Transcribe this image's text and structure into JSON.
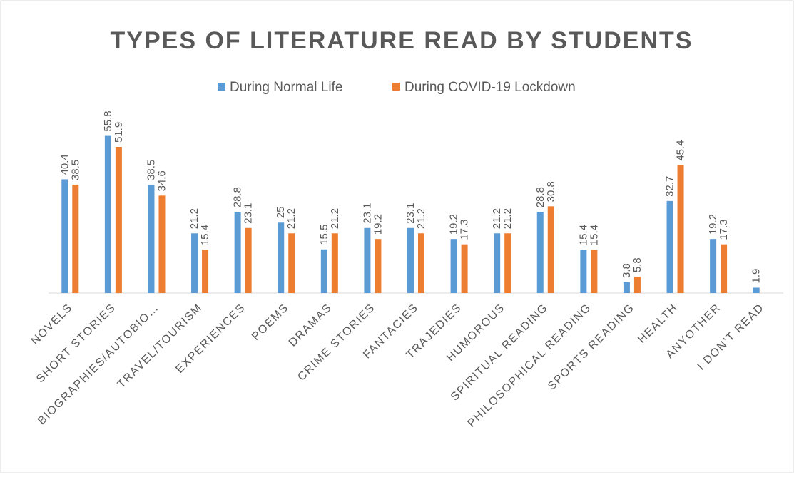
{
  "chart_data": {
    "type": "bar",
    "title": "TYPES OF LITERATURE READ BY STUDENTS",
    "categories": [
      "NOVELS",
      "SHORT STORIES",
      "BIOGRAPHIES/AUTOBIO…",
      "TRAVEL/TOURISM",
      "EXPERIENCES",
      "POEMS",
      "DRAMAS",
      "CRIME STORIES",
      "FANTACIES",
      "TRAJEDIES",
      "HUMOROUS",
      "SPIRITUAL READING",
      "PHILOSOPHICAL READING",
      "SPORTS READING",
      "HEALTH",
      "ANYOTHER",
      "I DON’T READ"
    ],
    "series": [
      {
        "name": "During Normal Life",
        "color": "#5b9bd5",
        "values": [
          40.4,
          55.8,
          38.5,
          21.2,
          28.8,
          25,
          15.5,
          23.1,
          23.1,
          19.2,
          21.2,
          28.8,
          15.4,
          3.8,
          32.7,
          19.2,
          1.9
        ]
      },
      {
        "name": "During COVID-19 Lockdown",
        "color": "#ed7d31",
        "values": [
          38.5,
          51.9,
          34.6,
          15.4,
          23.1,
          21.2,
          21.2,
          19.2,
          21.2,
          17.3,
          21.2,
          30.8,
          15.4,
          5.8,
          45.4,
          17.3,
          null
        ]
      }
    ],
    "ylim": [
      0,
      60
    ],
    "legend": "top"
  }
}
